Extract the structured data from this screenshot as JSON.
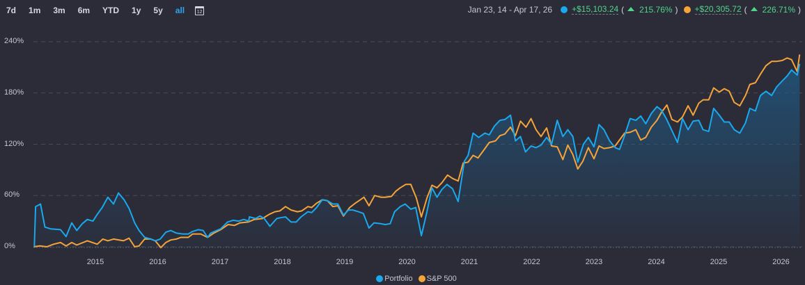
{
  "ranges": [
    "7d",
    "1m",
    "3m",
    "6m",
    "YTD",
    "1y",
    "5y",
    "all"
  ],
  "active_range": "all",
  "calendar_icon_text": "12",
  "summary": {
    "date_range": "Jan 23, 14 - Apr 17, 26",
    "portfolio": {
      "gain": "+$15,103.24",
      "open": "(",
      "pct": "215.76%",
      "close": ")"
    },
    "benchmark": {
      "gain": "+$20,305.72",
      "open": "(",
      "pct": "226.71%",
      "close": ")"
    }
  },
  "colors": {
    "portfolio": "#1aa8ee",
    "benchmark": "#f5a43a",
    "positive": "#4ed68a",
    "background": "#2c2c38"
  },
  "chart_data": {
    "type": "line",
    "ylim": [
      0,
      240
    ],
    "xlim": [
      2014.0,
      2026.3
    ],
    "y_ticks": [
      "0%",
      "60%",
      "120%",
      "180%",
      "240%"
    ],
    "y_tick_values": [
      0,
      60,
      120,
      180,
      240
    ],
    "x_ticks": [
      "2015",
      "2016",
      "2017",
      "2018",
      "2019",
      "2020",
      "2021",
      "2022",
      "2023",
      "2024",
      "2025",
      "2026"
    ],
    "x_tick_values": [
      2015,
      2016,
      2017,
      2018,
      2019,
      2020,
      2021,
      2022,
      2023,
      2024,
      2025,
      2026
    ],
    "grid": true,
    "legend": [
      "Portfolio",
      "S&P 500"
    ],
    "legend_position": "bottom",
    "series": [
      {
        "name": "Portfolio",
        "area": true,
        "points": [
          [
            2014.02,
            0
          ],
          [
            2014.04,
            47
          ],
          [
            2014.12,
            50
          ],
          [
            2014.19,
            23
          ],
          [
            2014.28,
            21
          ],
          [
            2014.44,
            20
          ],
          [
            2014.53,
            12
          ],
          [
            2014.62,
            28
          ],
          [
            2014.7,
            19
          ],
          [
            2014.79,
            27
          ],
          [
            2014.87,
            32
          ],
          [
            2014.96,
            30
          ],
          [
            2015.03,
            38
          ],
          [
            2015.11,
            46
          ],
          [
            2015.2,
            58
          ],
          [
            2015.29,
            50
          ],
          [
            2015.37,
            63
          ],
          [
            2015.46,
            55
          ],
          [
            2015.54,
            45
          ],
          [
            2015.63,
            28
          ],
          [
            2015.7,
            19
          ],
          [
            2015.79,
            11
          ],
          [
            2015.89,
            9
          ],
          [
            2015.96,
            7
          ],
          [
            2016.04,
            9
          ],
          [
            2016.13,
            17
          ],
          [
            2016.21,
            19
          ],
          [
            2016.3,
            16
          ],
          [
            2016.4,
            15
          ],
          [
            2016.49,
            15
          ],
          [
            2016.56,
            18
          ],
          [
            2016.65,
            20
          ],
          [
            2016.73,
            19
          ],
          [
            2016.8,
            11
          ],
          [
            2016.85,
            16
          ],
          [
            2017.01,
            21
          ],
          [
            2017.12,
            29
          ],
          [
            2017.21,
            31
          ],
          [
            2017.3,
            30
          ],
          [
            2017.38,
            32
          ],
          [
            2017.46,
            30
          ],
          [
            2017.47,
            35
          ],
          [
            2017.57,
            33
          ],
          [
            2017.64,
            36
          ],
          [
            2017.71,
            33
          ],
          [
            2017.8,
            24
          ],
          [
            2017.91,
            33
          ],
          [
            2017.97,
            34
          ],
          [
            2018.05,
            35
          ],
          [
            2018.14,
            29
          ],
          [
            2018.22,
            29
          ],
          [
            2018.3,
            35
          ],
          [
            2018.41,
            41
          ],
          [
            2018.47,
            40
          ],
          [
            2018.55,
            46
          ],
          [
            2018.64,
            55
          ],
          [
            2018.72,
            54
          ],
          [
            2018.81,
            50
          ],
          [
            2018.89,
            50
          ],
          [
            2018.98,
            37
          ],
          [
            2019.06,
            43
          ],
          [
            2019.13,
            43
          ],
          [
            2019.22,
            41
          ],
          [
            2019.3,
            39
          ],
          [
            2019.39,
            22
          ],
          [
            2019.47,
            28
          ],
          [
            2019.58,
            27
          ],
          [
            2019.65,
            26
          ],
          [
            2019.73,
            27
          ],
          [
            2019.8,
            41
          ],
          [
            2019.89,
            47
          ],
          [
            2019.97,
            50
          ],
          [
            2020.06,
            44
          ],
          [
            2020.14,
            46
          ],
          [
            2020.23,
            13
          ],
          [
            2020.32,
            41
          ],
          [
            2020.4,
            69
          ],
          [
            2020.48,
            58
          ],
          [
            2020.56,
            67
          ],
          [
            2020.64,
            73
          ],
          [
            2020.73,
            68
          ],
          [
            2020.82,
            53
          ],
          [
            2020.92,
            100
          ],
          [
            2020.98,
            107
          ],
          [
            2021.06,
            133
          ],
          [
            2021.15,
            128
          ],
          [
            2021.25,
            133
          ],
          [
            2021.32,
            131
          ],
          [
            2021.4,
            141
          ],
          [
            2021.49,
            148
          ],
          [
            2021.57,
            149
          ],
          [
            2021.66,
            154
          ],
          [
            2021.74,
            124
          ],
          [
            2021.82,
            129
          ],
          [
            2021.9,
            111
          ],
          [
            2021.99,
            118
          ],
          [
            2022.07,
            116
          ],
          [
            2022.15,
            119
          ],
          [
            2022.24,
            128
          ],
          [
            2022.32,
            120
          ],
          [
            2022.41,
            148
          ],
          [
            2022.5,
            129
          ],
          [
            2022.58,
            137
          ],
          [
            2022.66,
            129
          ],
          [
            2022.74,
            99
          ],
          [
            2022.83,
            120
          ],
          [
            2022.91,
            128
          ],
          [
            2023.0,
            117
          ],
          [
            2023.08,
            143
          ],
          [
            2023.16,
            137
          ],
          [
            2023.25,
            124
          ],
          [
            2023.34,
            116
          ],
          [
            2023.41,
            114
          ],
          [
            2023.49,
            130
          ],
          [
            2023.58,
            150
          ],
          [
            2023.67,
            148
          ],
          [
            2023.75,
            153
          ],
          [
            2023.83,
            144
          ],
          [
            2023.92,
            156
          ],
          [
            2024.01,
            164
          ],
          [
            2024.08,
            160
          ],
          [
            2024.16,
            150
          ],
          [
            2024.25,
            136
          ],
          [
            2024.34,
            122
          ],
          [
            2024.42,
            150
          ],
          [
            2024.51,
            137
          ],
          [
            2024.59,
            147
          ],
          [
            2024.68,
            148
          ],
          [
            2024.75,
            137
          ],
          [
            2024.84,
            135
          ],
          [
            2024.92,
            162
          ],
          [
            2025.01,
            154
          ],
          [
            2025.09,
            146
          ],
          [
            2025.17,
            146
          ],
          [
            2025.25,
            137
          ],
          [
            2025.34,
            133
          ],
          [
            2025.43,
            145
          ],
          [
            2025.5,
            162
          ],
          [
            2025.59,
            159
          ],
          [
            2025.67,
            177
          ],
          [
            2025.76,
            182
          ],
          [
            2025.85,
            177
          ],
          [
            2025.93,
            187
          ],
          [
            2026.02,
            194
          ],
          [
            2026.1,
            200
          ],
          [
            2026.17,
            207
          ],
          [
            2026.26,
            201
          ],
          [
            2026.3,
            214
          ]
        ]
      },
      {
        "name": "S&P 500",
        "area": false,
        "points": [
          [
            2014.01,
            0
          ],
          [
            2014.11,
            1
          ],
          [
            2014.22,
            0
          ],
          [
            2014.33,
            3
          ],
          [
            2014.44,
            5
          ],
          [
            2014.53,
            1
          ],
          [
            2014.62,
            5
          ],
          [
            2014.7,
            2
          ],
          [
            2014.87,
            7
          ],
          [
            2015.03,
            3
          ],
          [
            2015.12,
            9
          ],
          [
            2015.2,
            7
          ],
          [
            2015.29,
            9
          ],
          [
            2015.45,
            7
          ],
          [
            2015.54,
            10
          ],
          [
            2015.63,
            0
          ],
          [
            2015.7,
            1
          ],
          [
            2015.79,
            9
          ],
          [
            2015.89,
            9
          ],
          [
            2015.96,
            7
          ],
          [
            2016.05,
            -1
          ],
          [
            2016.13,
            5
          ],
          [
            2016.21,
            8
          ],
          [
            2016.3,
            9
          ],
          [
            2016.37,
            11
          ],
          [
            2016.49,
            11
          ],
          [
            2016.56,
            15
          ],
          [
            2016.69,
            15
          ],
          [
            2016.8,
            11
          ],
          [
            2016.9,
            16
          ],
          [
            2017.01,
            20
          ],
          [
            2017.13,
            26
          ],
          [
            2017.23,
            25
          ],
          [
            2017.32,
            28
          ],
          [
            2017.45,
            29
          ],
          [
            2017.55,
            32
          ],
          [
            2017.68,
            33
          ],
          [
            2017.79,
            38
          ],
          [
            2017.88,
            41
          ],
          [
            2017.96,
            42
          ],
          [
            2018.05,
            47
          ],
          [
            2018.14,
            43
          ],
          [
            2018.24,
            41
          ],
          [
            2018.31,
            42
          ],
          [
            2018.41,
            47
          ],
          [
            2018.47,
            46
          ],
          [
            2018.55,
            51
          ],
          [
            2018.64,
            55
          ],
          [
            2018.72,
            54
          ],
          [
            2018.81,
            47
          ],
          [
            2018.89,
            48
          ],
          [
            2018.98,
            36
          ],
          [
            2019.08,
            46
          ],
          [
            2019.17,
            51
          ],
          [
            2019.25,
            55
          ],
          [
            2019.31,
            58
          ],
          [
            2019.39,
            48
          ],
          [
            2019.48,
            60
          ],
          [
            2019.58,
            58
          ],
          [
            2019.65,
            58
          ],
          [
            2019.75,
            59
          ],
          [
            2019.82,
            65
          ],
          [
            2019.89,
            69
          ],
          [
            2019.98,
            73
          ],
          [
            2020.06,
            73
          ],
          [
            2020.15,
            57
          ],
          [
            2020.23,
            35
          ],
          [
            2020.32,
            57
          ],
          [
            2020.4,
            72
          ],
          [
            2020.48,
            69
          ],
          [
            2020.56,
            75
          ],
          [
            2020.65,
            84
          ],
          [
            2020.73,
            80
          ],
          [
            2020.82,
            77
          ],
          [
            2020.9,
            98
          ],
          [
            2020.98,
            99
          ],
          [
            2021.06,
            107
          ],
          [
            2021.14,
            104
          ],
          [
            2021.23,
            113
          ],
          [
            2021.32,
            122
          ],
          [
            2021.42,
            124
          ],
          [
            2021.49,
            130
          ],
          [
            2021.57,
            132
          ],
          [
            2021.66,
            140
          ],
          [
            2021.74,
            130
          ],
          [
            2021.82,
            147
          ],
          [
            2021.91,
            140
          ],
          [
            2021.99,
            150
          ],
          [
            2022.07,
            137
          ],
          [
            2022.15,
            129
          ],
          [
            2022.24,
            139
          ],
          [
            2022.32,
            118
          ],
          [
            2022.41,
            117
          ],
          [
            2022.5,
            102
          ],
          [
            2022.58,
            119
          ],
          [
            2022.66,
            108
          ],
          [
            2022.74,
            91
          ],
          [
            2022.82,
            100
          ],
          [
            2022.91,
            116
          ],
          [
            2023.0,
            103
          ],
          [
            2023.08,
            118
          ],
          [
            2023.16,
            115
          ],
          [
            2023.25,
            116
          ],
          [
            2023.34,
            118
          ],
          [
            2023.41,
            125
          ],
          [
            2023.49,
            133
          ],
          [
            2023.58,
            134
          ],
          [
            2023.67,
            137
          ],
          [
            2023.75,
            125
          ],
          [
            2023.83,
            128
          ],
          [
            2023.92,
            140
          ],
          [
            2024.01,
            148
          ],
          [
            2024.08,
            157
          ],
          [
            2024.17,
            166
          ],
          [
            2024.25,
            149
          ],
          [
            2024.34,
            146
          ],
          [
            2024.42,
            152
          ],
          [
            2024.51,
            165
          ],
          [
            2024.59,
            154
          ],
          [
            2024.68,
            168
          ],
          [
            2024.75,
            172
          ],
          [
            2024.84,
            172
          ],
          [
            2024.92,
            186
          ],
          [
            2025.01,
            181
          ],
          [
            2025.09,
            185
          ],
          [
            2025.17,
            182
          ],
          [
            2025.25,
            169
          ],
          [
            2025.34,
            165
          ],
          [
            2025.43,
            177
          ],
          [
            2025.5,
            190
          ],
          [
            2025.59,
            192
          ],
          [
            2025.67,
            202
          ],
          [
            2025.76,
            212
          ],
          [
            2025.85,
            217
          ],
          [
            2025.93,
            217
          ],
          [
            2026.02,
            218
          ],
          [
            2026.1,
            221
          ],
          [
            2026.17,
            219
          ],
          [
            2026.26,
            205
          ],
          [
            2026.3,
            225
          ]
        ]
      }
    ]
  }
}
